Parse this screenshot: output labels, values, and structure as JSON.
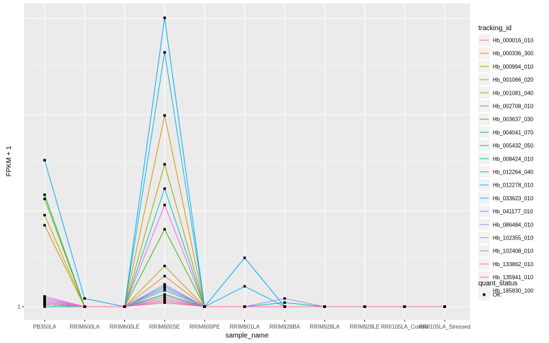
{
  "chart_data": {
    "type": "line",
    "xlabel": "sample_name",
    "ylabel": "FPKM + 1",
    "categories": [
      "PB350LA",
      "RRIM600LA",
      "RRIM600LE",
      "RRIM600SE",
      "RRIM600PE",
      "RRIM901LA",
      "RRIM928BA",
      "RRIM928LA",
      "RRIM928LE",
      "RRII105LA_Control",
      "RRII105LA_Stressed"
    ],
    "y_ticks": [
      {
        "value": 1,
        "label": "1"
      }
    ],
    "ylim": [
      0.9,
      15.5
    ],
    "grid": true,
    "legend_position": "right",
    "legend_title": "tracking_id",
    "series": [
      {
        "name": "Hb_000016_010",
        "color": "#F8766D",
        "values": [
          1.4,
          1.0,
          1.0,
          1.5,
          1.0,
          1.0,
          1.0,
          1.0,
          1.0,
          1.0,
          1.0
        ]
      },
      {
        "name": "Hb_000336_300",
        "color": "#EA8331",
        "values": [
          1.5,
          1.0,
          1.0,
          2.5,
          1.0,
          1.0,
          1.0,
          1.0,
          1.0,
          1.0,
          1.0
        ]
      },
      {
        "name": "Hb_000994_010",
        "color": "#D89000",
        "values": [
          5.5,
          1.0,
          1.0,
          10.4,
          1.0,
          1.0,
          1.0,
          1.0,
          1.0,
          1.0,
          1.0
        ]
      },
      {
        "name": "Hb_001066_020",
        "color": "#C09B00",
        "values": [
          5.0,
          1.0,
          1.0,
          3.0,
          1.0,
          1.0,
          1.0,
          1.0,
          1.0,
          1.0,
          1.0
        ]
      },
      {
        "name": "Hb_001081_040",
        "color": "#A3A500",
        "values": [
          1.2,
          1.0,
          1.0,
          8.0,
          1.0,
          1.0,
          1.0,
          1.0,
          1.0,
          1.0,
          1.0
        ]
      },
      {
        "name": "Hb_002708_010",
        "color": "#7CAE00",
        "values": [
          6.3,
          1.0,
          1.0,
          1.3,
          1.0,
          1.0,
          1.0,
          1.0,
          1.0,
          1.0,
          1.0
        ]
      },
      {
        "name": "Hb_003637_030",
        "color": "#39B600",
        "values": [
          1.3,
          1.0,
          1.0,
          4.8,
          1.0,
          1.0,
          1.0,
          1.0,
          1.0,
          1.0,
          1.0
        ]
      },
      {
        "name": "Hb_004041_070",
        "color": "#00BB4E",
        "values": [
          6.5,
          1.0,
          1.0,
          1.6,
          1.0,
          1.0,
          1.0,
          1.0,
          1.0,
          1.0,
          1.0
        ]
      },
      {
        "name": "Hb_005432_050",
        "color": "#00BF7D",
        "values": [
          1.1,
          1.0,
          1.0,
          1.2,
          1.0,
          1.0,
          1.0,
          1.0,
          1.0,
          1.0,
          1.0
        ]
      },
      {
        "name": "Hb_008424_010",
        "color": "#00C1A3",
        "values": [
          1.0,
          1.0,
          1.0,
          2.0,
          1.0,
          1.0,
          1.2,
          1.0,
          1.0,
          1.0,
          1.0
        ]
      },
      {
        "name": "Hb_012264_040",
        "color": "#00BFC4",
        "values": [
          1.2,
          1.0,
          1.0,
          6.8,
          1.0,
          1.0,
          1.0,
          1.0,
          1.0,
          1.0,
          1.0
        ]
      },
      {
        "name": "Hb_012278_010",
        "color": "#00B8E7",
        "values": [
          1.1,
          1.0,
          1.0,
          13.5,
          1.0,
          2.0,
          1.0,
          1.0,
          1.0,
          1.0,
          1.0
        ]
      },
      {
        "name": "Hb_033623_010",
        "color": "#00A9FF",
        "values": [
          8.2,
          1.4,
          1.0,
          15.2,
          1.0,
          3.4,
          1.0,
          1.0,
          1.0,
          1.0,
          1.0
        ]
      },
      {
        "name": "Hb_041177_010",
        "color": "#619CFF",
        "values": [
          1.3,
          1.0,
          1.0,
          1.8,
          1.0,
          1.0,
          1.0,
          1.0,
          1.0,
          1.0,
          1.0
        ]
      },
      {
        "name": "Hb_086484_010",
        "color": "#9F8CFF",
        "values": [
          1.2,
          1.0,
          1.0,
          2.1,
          1.0,
          1.0,
          1.4,
          1.0,
          1.0,
          1.0,
          1.0
        ]
      },
      {
        "name": "Hb_102355_010",
        "color": "#C77CFF",
        "values": [
          1.4,
          1.0,
          1.0,
          1.4,
          1.0,
          1.0,
          1.0,
          1.0,
          1.0,
          1.0,
          1.0
        ]
      },
      {
        "name": "Hb_102408_010",
        "color": "#E76BF3",
        "values": [
          1.5,
          1.0,
          1.0,
          1.9,
          1.0,
          1.0,
          1.0,
          1.0,
          1.0,
          1.0,
          1.0
        ]
      },
      {
        "name": "Hb_133862_010",
        "color": "#F862DF",
        "values": [
          1.3,
          1.0,
          1.0,
          6.0,
          1.0,
          1.0,
          1.0,
          1.0,
          1.0,
          1.0,
          1.0
        ]
      },
      {
        "name": "Hb_135941_010",
        "color": "#FF62BC",
        "values": [
          1.2,
          1.0,
          1.0,
          1.3,
          1.0,
          1.0,
          1.0,
          1.0,
          1.0,
          1.0,
          1.0
        ]
      },
      {
        "name": "Hb_185830_100",
        "color": "#FF6C91",
        "values": [
          1.1,
          1.0,
          1.0,
          1.2,
          1.0,
          1.0,
          1.0,
          1.0,
          1.0,
          1.0,
          1.0
        ]
      }
    ],
    "shape_legend": {
      "title": "quant_status",
      "items": [
        {
          "label": "OK",
          "shape": "square"
        }
      ]
    }
  }
}
